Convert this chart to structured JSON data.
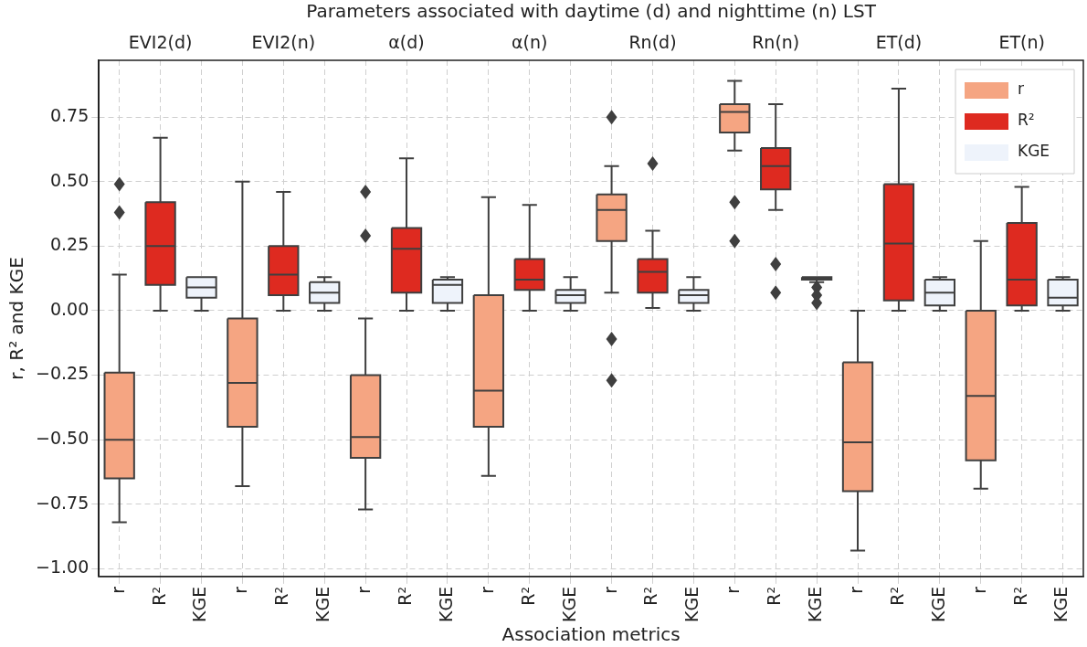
{
  "chart_data": {
    "type": "box",
    "xlabel": "Association metrics",
    "ylabel": "r, R² and KGE",
    "x2label": "Parameters associated with daytime (d) and nighttime (n) LST",
    "categories": [
      "r",
      "R²",
      "KGE",
      "r",
      "R²",
      "KGE",
      "r",
      "R²",
      "KGE",
      "r",
      "R²",
      "KGE",
      "r",
      "R²",
      "KGE",
      "r",
      "R²",
      "KGE",
      "r",
      "R²",
      "KGE",
      "r",
      "R²",
      "KGE"
    ],
    "annotations": [
      "EVI2(d)",
      "EVI2(n)",
      "α(d)",
      "α(n)",
      "Rn(d)",
      "Rn(n)",
      "ET(d)",
      "ET(n)"
    ],
    "ylim": [
      -1.03,
      0.97
    ],
    "yticks": [
      {
        "value": -1,
        "label": "−1.00"
      },
      {
        "value": -0.75,
        "label": "−0.75"
      },
      {
        "value": -0.5,
        "label": "−0.50"
      },
      {
        "value": -0.25,
        "label": "−0.25"
      },
      {
        "value": 0,
        "label": "0.00"
      },
      {
        "value": 0.25,
        "label": "0.25"
      },
      {
        "value": 0.5,
        "label": "0.50"
      },
      {
        "value": 0.75,
        "label": "0.75"
      }
    ],
    "grid": true,
    "legend": "top right",
    "series": [
      {
        "name": "r",
        "color": "#f5a582",
        "boxes": [
          {
            "low": -0.82,
            "q1": -0.65,
            "median": -0.5,
            "q3": -0.24,
            "high": 0.14,
            "outliers": [
              0.49,
              0.38
            ]
          },
          null,
          null,
          {
            "low": -0.68,
            "q1": -0.45,
            "median": -0.28,
            "q3": -0.03,
            "high": 0.5
          },
          null,
          null,
          {
            "low": -0.77,
            "q1": -0.57,
            "median": -0.49,
            "q3": -0.25,
            "high": -0.03,
            "outliers": [
              0.46,
              0.29
            ]
          },
          null,
          null,
          {
            "low": -0.64,
            "q1": -0.45,
            "median": -0.31,
            "q3": 0.06,
            "high": 0.44
          },
          null,
          null,
          {
            "low": 0.07,
            "q1": 0.27,
            "median": 0.39,
            "q3": 0.45,
            "high": 0.56,
            "outliers": [
              0.75,
              -0.11,
              -0.27
            ]
          },
          null,
          null,
          {
            "low": 0.62,
            "q1": 0.69,
            "median": 0.77,
            "q3": 0.8,
            "high": 0.89,
            "outliers": [
              0.42,
              0.27
            ]
          },
          null,
          null,
          {
            "low": -0.93,
            "q1": -0.7,
            "median": -0.51,
            "q3": -0.2,
            "high": 0
          },
          null,
          null,
          {
            "low": -0.69,
            "q1": -0.58,
            "median": -0.33,
            "q3": 0,
            "high": 0.27
          },
          null,
          null
        ]
      },
      {
        "name": "R²",
        "color": "#de2a20",
        "boxes": [
          null,
          {
            "low": 0,
            "q1": 0.1,
            "median": 0.25,
            "q3": 0.42,
            "high": 0.67
          },
          null,
          null,
          {
            "low": 0,
            "q1": 0.06,
            "median": 0.14,
            "q3": 0.25,
            "high": 0.46
          },
          null,
          null,
          {
            "low": 0,
            "q1": 0.07,
            "median": 0.24,
            "q3": 0.32,
            "high": 0.59
          },
          null,
          null,
          {
            "low": 0,
            "q1": 0.08,
            "median": 0.12,
            "q3": 0.2,
            "high": 0.41
          },
          null,
          null,
          {
            "low": 0.01,
            "q1": 0.07,
            "median": 0.15,
            "q3": 0.2,
            "high": 0.31,
            "outliers": [
              0.57
            ]
          },
          null,
          null,
          {
            "low": 0.39,
            "q1": 0.47,
            "median": 0.56,
            "q3": 0.63,
            "high": 0.8,
            "outliers": [
              0.18,
              0.07
            ]
          },
          null,
          null,
          {
            "low": 0,
            "q1": 0.04,
            "median": 0.26,
            "q3": 0.49,
            "high": 0.86
          },
          null,
          null,
          {
            "low": 0,
            "q1": 0.02,
            "median": 0.12,
            "q3": 0.34,
            "high": 0.48
          },
          null
        ]
      },
      {
        "name": "KGE",
        "color": "#eef3fb",
        "boxes": [
          null,
          null,
          {
            "low": 0,
            "q1": 0.05,
            "median": 0.09,
            "q3": 0.13,
            "high": 0.13
          },
          null,
          null,
          {
            "low": 0,
            "q1": 0.03,
            "median": 0.07,
            "q3": 0.11,
            "high": 0.13
          },
          null,
          null,
          {
            "low": 0,
            "q1": 0.03,
            "median": 0.1,
            "q3": 0.12,
            "high": 0.13
          },
          null,
          null,
          {
            "low": 0,
            "q1": 0.03,
            "median": 0.06,
            "q3": 0.08,
            "high": 0.13
          },
          null,
          null,
          {
            "low": 0,
            "q1": 0.03,
            "median": 0.06,
            "q3": 0.08,
            "high": 0.13
          },
          null,
          null,
          {
            "low": 0.11,
            "q1": 0.12,
            "median": 0.125,
            "q3": 0.13,
            "high": 0.13,
            "outliers": [
              0.09,
              0.06,
              0.03
            ]
          },
          null,
          null,
          {
            "low": 0,
            "q1": 0.02,
            "median": 0.07,
            "q3": 0.12,
            "high": 0.13
          },
          null,
          null,
          {
            "low": 0,
            "q1": 0.02,
            "median": 0.05,
            "q3": 0.12,
            "high": 0.13
          }
        ]
      }
    ]
  }
}
